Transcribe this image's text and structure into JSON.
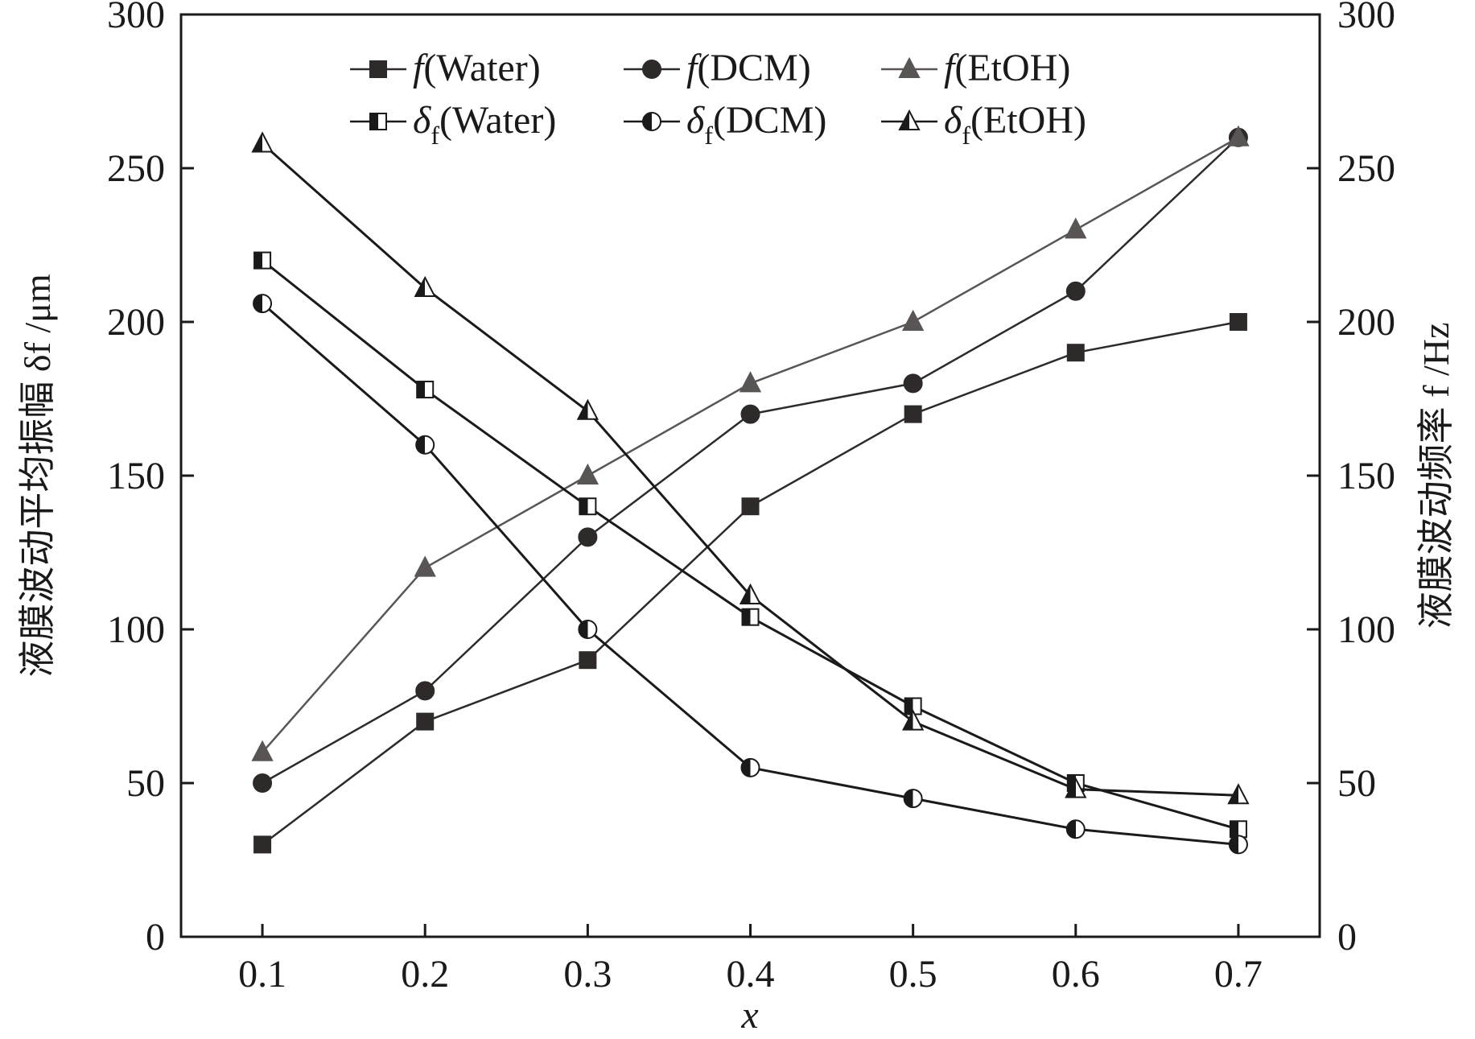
{
  "chart_data": {
    "type": "line",
    "xlabel": "x",
    "ylabel_left": "液膜波动平均振幅 δf /μm",
    "ylabel_right": "液膜波动频率 f /Hz",
    "x_ticks": [
      "0.1",
      "0.2",
      "0.3",
      "0.4",
      "0.5",
      "0.6",
      "0.7"
    ],
    "y_ticks_left": [
      "0",
      "50",
      "100",
      "150",
      "200",
      "250",
      "300"
    ],
    "y_ticks_right": [
      "0",
      "50",
      "100",
      "150",
      "200",
      "250",
      "300"
    ],
    "xlim": [
      0.05,
      0.75
    ],
    "ylim_left": [
      0,
      300
    ],
    "ylim_right": [
      0,
      300
    ],
    "legend_position": "top",
    "x": [
      0.1,
      0.2,
      0.3,
      0.4,
      0.5,
      0.6,
      0.7
    ],
    "series": [
      {
        "name": "f(Water)",
        "legend_main": "f",
        "legend_sub": "",
        "legend_suffix": "(Water)",
        "axis": "right",
        "marker": "square",
        "fill": "full",
        "color": "#2e2a2a",
        "values": [
          30,
          70,
          90,
          140,
          170,
          190,
          200
        ]
      },
      {
        "name": "f(DCM)",
        "legend_main": "f",
        "legend_sub": "",
        "legend_suffix": "(DCM)",
        "axis": "right",
        "marker": "circle",
        "fill": "full",
        "color": "#2e2a2a",
        "values": [
          50,
          80,
          130,
          170,
          180,
          210,
          260
        ]
      },
      {
        "name": "f(EtOH)",
        "legend_main": "f",
        "legend_sub": "",
        "legend_suffix": "(EtOH)",
        "axis": "right",
        "marker": "triangle",
        "fill": "full",
        "color": "#5a5555",
        "values": [
          60,
          120,
          150,
          180,
          200,
          230,
          260
        ]
      },
      {
        "name": "δf(Water)",
        "legend_main": "δ",
        "legend_sub": "f",
        "legend_suffix": "(Water)",
        "axis": "left",
        "marker": "square",
        "fill": "half",
        "color": "#1a1a1a",
        "values": [
          220,
          178,
          140,
          104,
          75,
          50,
          35
        ]
      },
      {
        "name": "δf(DCM)",
        "legend_main": "δ",
        "legend_sub": "f",
        "legend_suffix": "(DCM)",
        "axis": "left",
        "marker": "circle",
        "fill": "half",
        "color": "#1a1a1a",
        "values": [
          206,
          160,
          100,
          55,
          45,
          35,
          30
        ]
      },
      {
        "name": "δf(EtOH)",
        "legend_main": "δ",
        "legend_sub": "f",
        "legend_suffix": "(EtOH)",
        "axis": "left",
        "marker": "triangle",
        "fill": "half",
        "color": "#1a1a1a",
        "values": [
          258,
          211,
          171,
          111,
          70,
          48,
          46
        ]
      }
    ]
  }
}
